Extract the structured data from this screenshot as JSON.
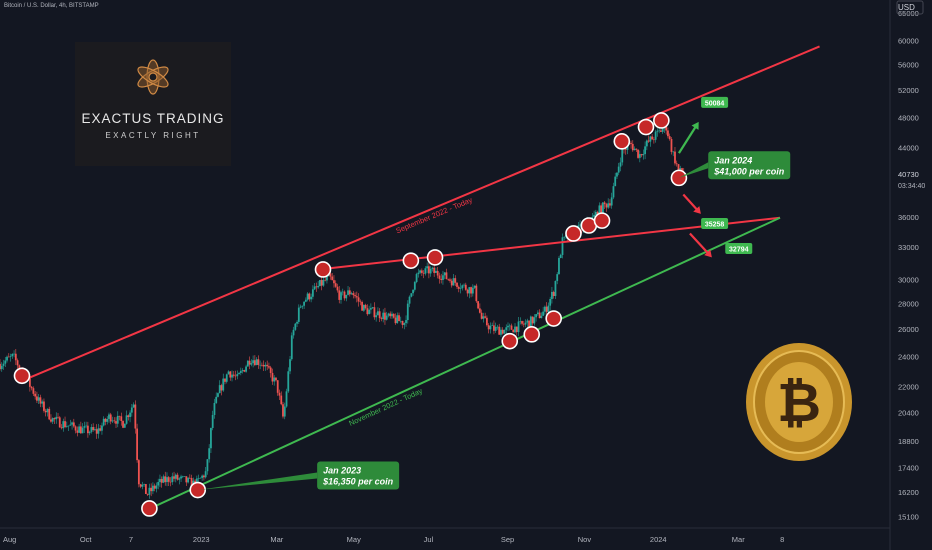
{
  "header": {
    "symbol_text": "Bitcoin / U.S. Dollar, 4h, BITSTAMP"
  },
  "axis": {
    "currency": "USD"
  },
  "logo": {
    "line1": "EXACTUS TRADING",
    "line2": "EXACTLY RIGHT"
  },
  "price_tag": {
    "value": "40730",
    "countdown": "03:34:40"
  },
  "chart_data": {
    "type": "line",
    "series_kind": "candlestick",
    "y_scale": "log",
    "ylim": [
      14600,
      67500
    ],
    "xlim": [
      0,
      17.75
    ],
    "y_ticks": [
      65000,
      60000,
      56000,
      52000,
      48000,
      44000,
      40730,
      36000,
      33000,
      30000,
      28000,
      26000,
      24000,
      22000,
      20400,
      18800,
      17400,
      16200,
      15100
    ],
    "x_ticks": [
      {
        "label": "Aug",
        "t": 0.0
      },
      {
        "label": "Oct",
        "t": 1.95
      },
      {
        "label": "7",
        "t": 2.98
      },
      {
        "label": "2023",
        "t": 4.58
      },
      {
        "label": "Mar",
        "t": 6.3
      },
      {
        "label": "May",
        "t": 8.05
      },
      {
        "label": "Jul",
        "t": 9.75
      },
      {
        "label": "Sep",
        "t": 11.55
      },
      {
        "label": "Nov",
        "t": 13.3
      },
      {
        "label": "2024",
        "t": 14.98
      },
      {
        "label": "Mar",
        "t": 16.8
      },
      {
        "label": "8",
        "t": 17.8
      }
    ],
    "price_path": [
      [
        0.0,
        23500
      ],
      [
        0.3,
        24000
      ],
      [
        0.6,
        22500
      ],
      [
        0.9,
        21000
      ],
      [
        1.2,
        20000
      ],
      [
        1.5,
        19700
      ],
      [
        1.9,
        19400
      ],
      [
        2.2,
        19300
      ],
      [
        2.5,
        20200
      ],
      [
        2.8,
        19800
      ],
      [
        3.05,
        21000
      ],
      [
        3.15,
        16800
      ],
      [
        3.35,
        16100
      ],
      [
        3.6,
        16600
      ],
      [
        3.9,
        16900
      ],
      [
        4.2,
        16750
      ],
      [
        4.45,
        16550
      ],
      [
        4.7,
        17200
      ],
      [
        4.85,
        20500
      ],
      [
        5.0,
        21800
      ],
      [
        5.2,
        23000
      ],
      [
        5.4,
        22500
      ],
      [
        5.7,
        23900
      ],
      [
        6.0,
        23500
      ],
      [
        6.3,
        22100
      ],
      [
        6.45,
        20000
      ],
      [
        6.65,
        25500
      ],
      [
        6.85,
        28000
      ],
      [
        7.05,
        28700
      ],
      [
        7.3,
        29600
      ],
      [
        7.5,
        30200
      ],
      [
        7.75,
        28500
      ],
      [
        8.0,
        29000
      ],
      [
        8.3,
        27500
      ],
      [
        8.6,
        27200
      ],
      [
        8.9,
        26800
      ],
      [
        9.2,
        26500
      ],
      [
        9.45,
        30300
      ],
      [
        9.75,
        30800
      ],
      [
        10.0,
        30500
      ],
      [
        10.3,
        29900
      ],
      [
        10.6,
        29300
      ],
      [
        10.8,
        29100
      ],
      [
        10.95,
        26800
      ],
      [
        11.2,
        26000
      ],
      [
        11.5,
        25900
      ],
      [
        11.8,
        26200
      ],
      [
        12.1,
        26600
      ],
      [
        12.4,
        27400
      ],
      [
        12.6,
        29000
      ],
      [
        12.8,
        33500
      ],
      [
        13.1,
        34500
      ],
      [
        13.4,
        35300
      ],
      [
        13.6,
        36500
      ],
      [
        13.9,
        37800
      ],
      [
        14.15,
        43500
      ],
      [
        14.35,
        44500
      ],
      [
        14.55,
        43000
      ],
      [
        14.75,
        44700
      ],
      [
        15.0,
        46000
      ],
      [
        15.15,
        47000
      ],
      [
        15.3,
        43500
      ],
      [
        15.45,
        41000
      ],
      [
        15.6,
        40730
      ]
    ],
    "lines": [
      {
        "name": "September 2022 - Today",
        "color": "#f23645",
        "from": [
          0.52,
          22400
        ],
        "to": [
          18.65,
          59000
        ]
      },
      {
        "name": "",
        "color": "#f23645",
        "from": [
          7.25,
          30900
        ],
        "to": [
          17.75,
          35900
        ]
      },
      {
        "name": "November 2022 - Today",
        "color": "#3fb950",
        "from": [
          3.25,
          15300
        ],
        "to": [
          17.75,
          35900
        ]
      }
    ],
    "markers": [
      [
        0.5,
        22700
      ],
      [
        3.4,
        15450
      ],
      [
        4.5,
        16300
      ],
      [
        7.35,
        30900
      ],
      [
        9.35,
        31700
      ],
      [
        9.9,
        32000
      ],
      [
        11.6,
        25100
      ],
      [
        12.1,
        25600
      ],
      [
        12.6,
        26800
      ],
      [
        13.05,
        34300
      ],
      [
        13.4,
        35100
      ],
      [
        13.7,
        35600
      ],
      [
        14.15,
        44800
      ],
      [
        14.7,
        46700
      ],
      [
        15.05,
        47600
      ],
      [
        15.45,
        40300
      ]
    ],
    "annotations": [
      {
        "text": "Jan 2023",
        "text2": "$16,350 per coin",
        "box": [
          8.15,
          17000
        ],
        "anchor": [
          4.5,
          16300
        ]
      },
      {
        "text": "Jan 2024",
        "text2": "$41,000 per coin",
        "box": [
          17.05,
          41800
        ],
        "anchor": [
          15.45,
          40300
        ]
      }
    ],
    "targets": [
      {
        "label": "50084",
        "t": 16.0,
        "y": 50084,
        "from": [
          15.45,
          43300
        ],
        "to": [
          15.9,
          47400
        ],
        "color": "#3fb950"
      },
      {
        "label": "35258",
        "t": 16.0,
        "y": 35258,
        "from": [
          15.55,
          38400
        ],
        "to": [
          15.95,
          36300
        ],
        "color": "#f23645"
      },
      {
        "label": "32794",
        "t": 16.55,
        "y": 32794,
        "from": [
          15.7,
          34300
        ],
        "to": [
          16.2,
          32000
        ],
        "color": "#f23645"
      }
    ],
    "price_last": 40730
  }
}
